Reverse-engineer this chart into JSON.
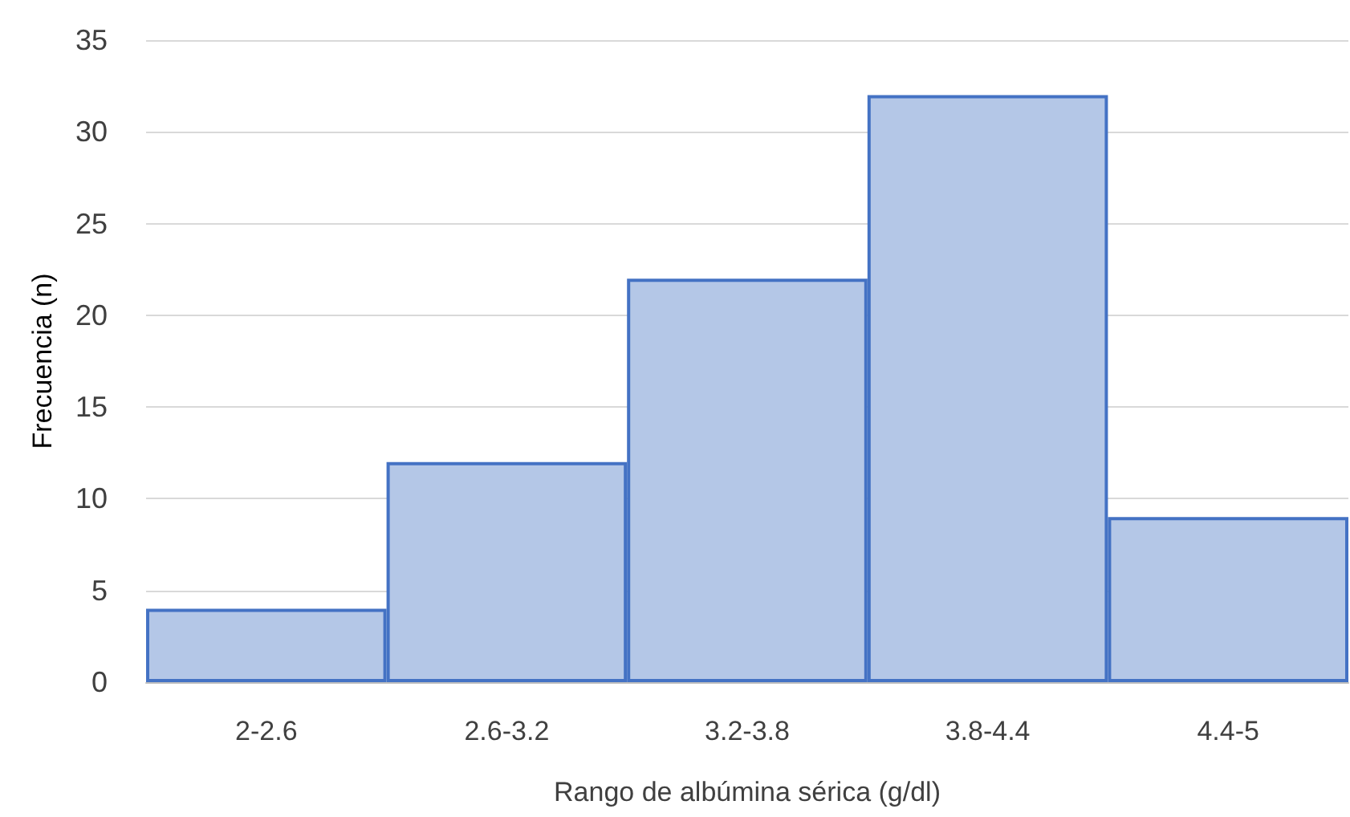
{
  "chart_data": {
    "type": "bar",
    "xlabel": "Rango de albúmina sérica (g/dl)",
    "ylabel": "Frecuencia (n)",
    "categories": [
      "2-2.6",
      "2.6-3.2",
      "3.2-3.8",
      "3.8-4.4",
      "4.4-5"
    ],
    "values": [
      4,
      12,
      22,
      32,
      9
    ],
    "color": "#b4c7e7",
    "ylim": [
      0,
      35
    ],
    "yticks": [
      0,
      5,
      10,
      15,
      20,
      25,
      30,
      35
    ],
    "grid": "y"
  }
}
